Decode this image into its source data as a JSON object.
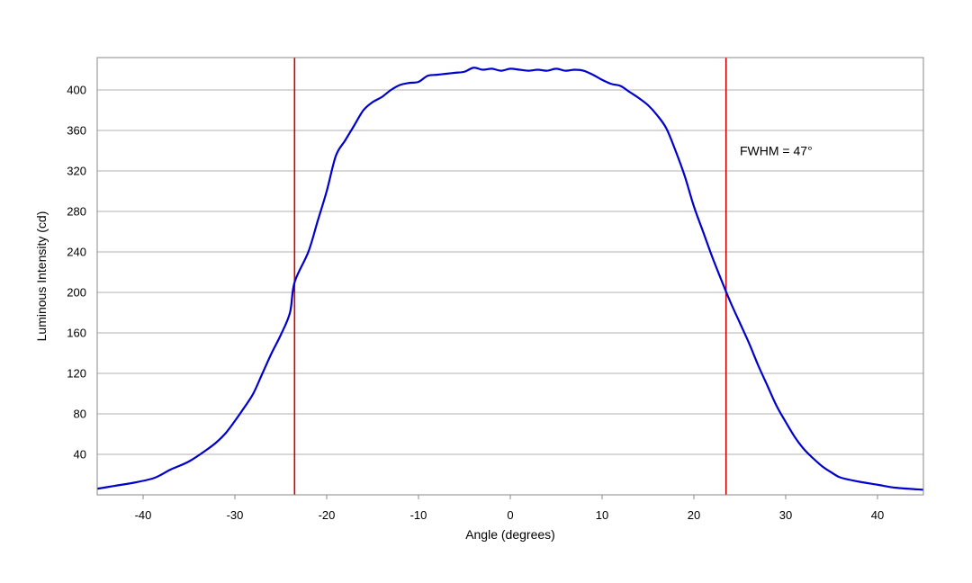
{
  "chart_data": {
    "type": "line",
    "title": "",
    "xlabel": "Angle (degrees)",
    "ylabel": "Luminous Intensity (cd)",
    "xlim": [
      -45,
      45
    ],
    "ylim": [
      0,
      432
    ],
    "x_ticks": [
      -40,
      -30,
      -20,
      -10,
      0,
      10,
      20,
      30,
      40
    ],
    "y_ticks": [
      40,
      80,
      120,
      160,
      200,
      240,
      280,
      320,
      360,
      400
    ],
    "grid": "horizontal",
    "legend": "none",
    "series": [
      {
        "color": "#0000cc",
        "points": [
          [
            -45,
            6
          ],
          [
            -43,
            9
          ],
          [
            -41,
            12
          ],
          [
            -39,
            16
          ],
          [
            -38,
            20
          ],
          [
            -37,
            25
          ],
          [
            -35,
            33
          ],
          [
            -33,
            45
          ],
          [
            -32,
            52
          ],
          [
            -31,
            61
          ],
          [
            -30,
            73
          ],
          [
            -29,
            86
          ],
          [
            -28,
            100
          ],
          [
            -27,
            120
          ],
          [
            -26,
            140
          ],
          [
            -25,
            158
          ],
          [
            -24,
            180
          ],
          [
            -23.5,
            210
          ],
          [
            -22,
            240
          ],
          [
            -21,
            270
          ],
          [
            -20,
            300
          ],
          [
            -19,
            335
          ],
          [
            -18,
            350
          ],
          [
            -17,
            365
          ],
          [
            -16,
            380
          ],
          [
            -15,
            388
          ],
          [
            -14,
            393
          ],
          [
            -13,
            400
          ],
          [
            -12,
            405
          ],
          [
            -11,
            407
          ],
          [
            -10,
            408
          ],
          [
            -9,
            414
          ],
          [
            -8,
            415
          ],
          [
            -7,
            416
          ],
          [
            -6,
            417
          ],
          [
            -5,
            418
          ],
          [
            -4,
            422
          ],
          [
            -3,
            420
          ],
          [
            -2,
            421
          ],
          [
            -1,
            419
          ],
          [
            0,
            421
          ],
          [
            1,
            420
          ],
          [
            2,
            419
          ],
          [
            3,
            420
          ],
          [
            4,
            419
          ],
          [
            5,
            421
          ],
          [
            6,
            419
          ],
          [
            7,
            420
          ],
          [
            8,
            419
          ],
          [
            9,
            415
          ],
          [
            10,
            410
          ],
          [
            11,
            406
          ],
          [
            12,
            404
          ],
          [
            13,
            398
          ],
          [
            14,
            392
          ],
          [
            15,
            385
          ],
          [
            16,
            375
          ],
          [
            17,
            362
          ],
          [
            18,
            340
          ],
          [
            19,
            315
          ],
          [
            20,
            285
          ],
          [
            21,
            260
          ],
          [
            22,
            235
          ],
          [
            23,
            212
          ],
          [
            24,
            190
          ],
          [
            25,
            170
          ],
          [
            26,
            150
          ],
          [
            27,
            128
          ],
          [
            28,
            108
          ],
          [
            29,
            88
          ],
          [
            30,
            72
          ],
          [
            31,
            57
          ],
          [
            32,
            45
          ],
          [
            33,
            36
          ],
          [
            34,
            28
          ],
          [
            35,
            22
          ],
          [
            36,
            17
          ],
          [
            38,
            13
          ],
          [
            40,
            10
          ],
          [
            42,
            7
          ],
          [
            45,
            5
          ]
        ]
      }
    ],
    "vlines": [
      {
        "x": -23.5,
        "color": "#cc0000"
      },
      {
        "x": 23.5,
        "color": "#cc0000"
      }
    ],
    "annotations": [
      {
        "text": "FWHM = 47°",
        "x": 25,
        "y": 340
      }
    ],
    "colors": {
      "grid": "#b0b0b0",
      "frame": "#888888",
      "curve": "#0000cc",
      "marker_lines": "#cc0000"
    }
  }
}
